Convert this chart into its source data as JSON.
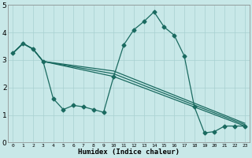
{
  "xlabel": "Humidex (Indice chaleur)",
  "ylabel": "",
  "background_color": "#c8e8e8",
  "line_color": "#1a6a60",
  "xlim": [
    -0.5,
    23.5
  ],
  "ylim": [
    0,
    5
  ],
  "xticks": [
    0,
    1,
    2,
    3,
    4,
    5,
    6,
    7,
    8,
    9,
    10,
    11,
    12,
    13,
    14,
    15,
    16,
    17,
    18,
    19,
    20,
    21,
    22,
    23
  ],
  "yticks": [
    0,
    1,
    2,
    3,
    4,
    5
  ],
  "lines": [
    {
      "x": [
        0,
        1,
        2,
        3,
        4,
        5,
        6,
        7,
        8,
        9,
        10,
        11,
        12,
        13,
        14,
        15,
        16,
        17,
        18,
        19,
        20,
        21,
        22,
        23
      ],
      "y": [
        3.25,
        3.6,
        3.4,
        2.95,
        1.6,
        1.2,
        1.35,
        1.3,
        1.2,
        1.1,
        2.4,
        3.55,
        4.1,
        4.4,
        4.75,
        4.2,
        3.9,
        3.15,
        1.3,
        0.35,
        0.4,
        0.6,
        0.6,
        0.6
      ],
      "marker": true
    },
    {
      "x": [
        0,
        1,
        2,
        3,
        10,
        23
      ],
      "y": [
        3.25,
        3.6,
        3.4,
        2.95,
        2.4,
        0.6
      ],
      "marker": false
    },
    {
      "x": [
        0,
        1,
        2,
        3,
        10,
        23
      ],
      "y": [
        3.25,
        3.6,
        3.4,
        2.95,
        2.5,
        0.65
      ],
      "marker": false
    },
    {
      "x": [
        0,
        1,
        2,
        3,
        10,
        23
      ],
      "y": [
        3.25,
        3.6,
        3.4,
        2.95,
        2.6,
        0.7
      ],
      "marker": false
    }
  ]
}
